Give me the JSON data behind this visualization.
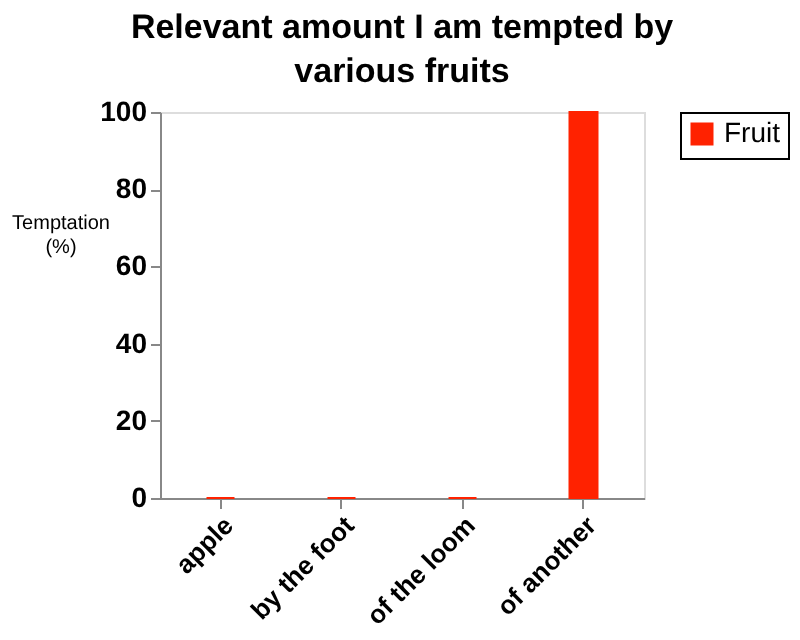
{
  "chart_data": {
    "type": "bar",
    "title": "Relevant amount I am tempted by various fruits",
    "ylabel": "Temptation (%)",
    "categories": [
      "apple",
      "by the foot",
      "of the loom",
      "of another"
    ],
    "series": [
      {
        "name": "Fruit",
        "color": "#ff2200",
        "values": [
          0,
          0,
          0,
          100
        ]
      }
    ],
    "ylim": [
      0,
      100
    ],
    "yticks": [
      0,
      20,
      40,
      60,
      80,
      100
    ],
    "grid": false,
    "legend": "right"
  }
}
